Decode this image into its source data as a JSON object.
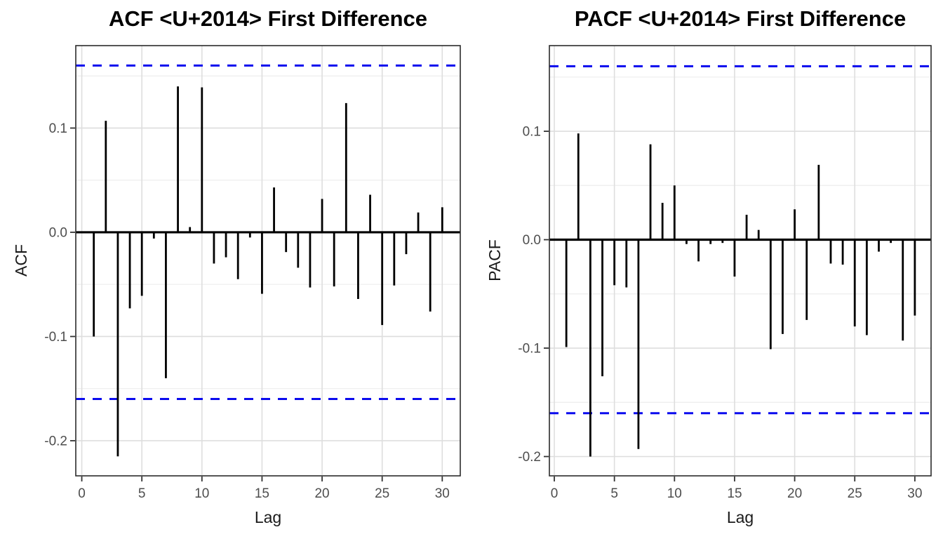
{
  "colors": {
    "bar": "#000000",
    "zero_line": "#000000",
    "confidence_line": "#0b0bee",
    "grid_major": "#dedede",
    "grid_minor": "#ededed",
    "panel_border": "#2b2b2b",
    "tick_mark": "#333333",
    "tick_text": "#4d4d4d",
    "title_text": "#000000"
  },
  "chart_data": [
    {
      "type": "bar",
      "subtype": "acf-lollipop",
      "title": "ACF <U+2014> First Difference",
      "xlabel": "Lag",
      "ylabel": "ACF",
      "legend": "none",
      "grid": true,
      "lags": [
        1,
        2,
        3,
        4,
        5,
        6,
        7,
        8,
        9,
        10,
        11,
        12,
        13,
        14,
        15,
        16,
        17,
        18,
        19,
        20,
        21,
        22,
        23,
        24,
        25,
        26,
        27,
        28,
        29,
        30
      ],
      "values": [
        -0.1,
        0.107,
        -0.215,
        -0.073,
        -0.061,
        -0.006,
        -0.14,
        0.14,
        0.005,
        0.139,
        -0.03,
        -0.024,
        -0.045,
        -0.005,
        -0.059,
        0.043,
        -0.019,
        -0.034,
        -0.053,
        0.032,
        -0.052,
        0.124,
        -0.064,
        0.036,
        -0.089,
        -0.051,
        -0.021,
        0.019,
        -0.076,
        0.024
      ],
      "conf_bounds": [
        0.16,
        -0.16
      ],
      "x_ticks": [
        0,
        5,
        10,
        15,
        20,
        25,
        30
      ],
      "x_tick_labels": [
        "0",
        "5",
        "10",
        "15",
        "20",
        "25",
        "30"
      ],
      "y_ticks": [
        0.1,
        0.0,
        -0.1,
        -0.2
      ],
      "y_tick_labels": [
        "0.1",
        "0.0",
        "-0.1",
        "-0.2"
      ],
      "y_minor": [
        0.15,
        0.05,
        -0.05,
        -0.15
      ],
      "xlim": [
        -0.5,
        31.5
      ],
      "ylim": [
        -0.2337,
        0.1791
      ]
    },
    {
      "type": "bar",
      "subtype": "pacf-lollipop",
      "title": "PACF <U+2014> First Difference",
      "xlabel": "Lag",
      "ylabel": "PACF",
      "legend": "none",
      "grid": true,
      "lags": [
        1,
        2,
        3,
        4,
        5,
        6,
        7,
        8,
        9,
        10,
        11,
        12,
        13,
        14,
        15,
        16,
        17,
        18,
        19,
        20,
        21,
        22,
        23,
        24,
        25,
        26,
        27,
        28,
        29,
        30
      ],
      "values": [
        -0.099,
        0.098,
        -0.2,
        -0.126,
        -0.042,
        -0.044,
        -0.193,
        0.088,
        0.034,
        0.05,
        -0.004,
        -0.02,
        -0.004,
        -0.003,
        -0.034,
        0.023,
        0.009,
        -0.101,
        -0.087,
        0.028,
        -0.074,
        0.069,
        -0.022,
        -0.023,
        -0.08,
        -0.088,
        -0.011,
        -0.003,
        -0.093,
        -0.07
      ],
      "conf_bounds": [
        0.16,
        -0.16
      ],
      "x_ticks": [
        0,
        5,
        10,
        15,
        20,
        25,
        30
      ],
      "x_tick_labels": [
        "0",
        "5",
        "10",
        "15",
        "20",
        "25",
        "30"
      ],
      "y_ticks": [
        0.1,
        0.0,
        -0.1,
        -0.2
      ],
      "y_tick_labels": [
        "0.1",
        "0.0",
        "-0.1",
        "-0.2"
      ],
      "y_minor": [
        0.15,
        0.05,
        -0.05,
        -0.15
      ],
      "xlim": [
        -0.41,
        31.35
      ],
      "ylim": [
        -0.2178,
        0.179
      ]
    }
  ]
}
